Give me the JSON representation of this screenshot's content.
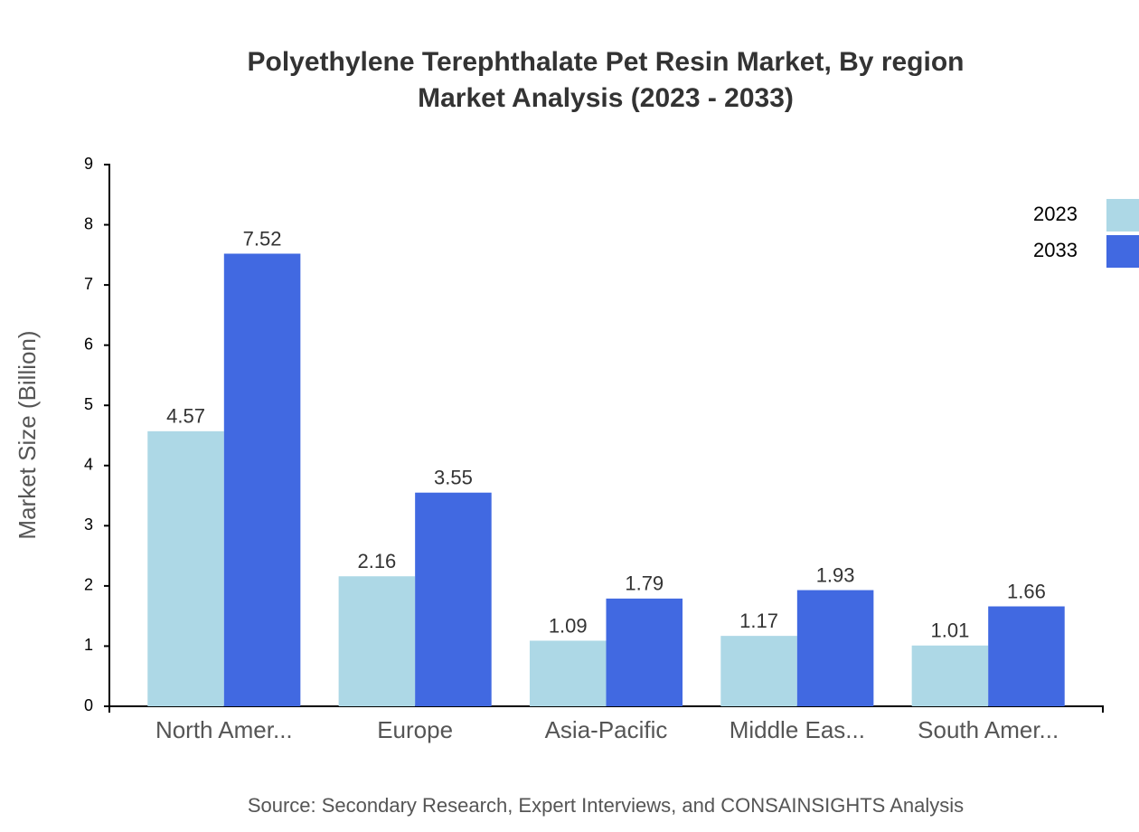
{
  "chart_data": {
    "type": "bar",
    "title": "Polyethylene Terephthalate Pet Resin Market, By region",
    "subtitle": "Market Analysis (2023 - 2033)",
    "y_label": "Market Size (Billion)",
    "source": "Source: Secondary Research, Expert Interviews, and CONSAINSIGHTS Analysis",
    "categories": [
      "North Amer...",
      "Europe",
      "Asia-Pacific",
      "Middle Eas...",
      "South Amer..."
    ],
    "series": [
      {
        "name": "2023",
        "color": "#add8e6",
        "values": [
          4.57,
          2.16,
          1.09,
          1.17,
          1.01
        ]
      },
      {
        "name": "2033",
        "color": "#4169e1",
        "values": [
          7.52,
          3.55,
          1.79,
          1.93,
          1.66
        ]
      }
    ],
    "ylim": [
      0,
      9
    ],
    "yticks": [
      0,
      1,
      2,
      3,
      4,
      5,
      6,
      7,
      8,
      9
    ],
    "grid": false,
    "legend": "top-right"
  }
}
